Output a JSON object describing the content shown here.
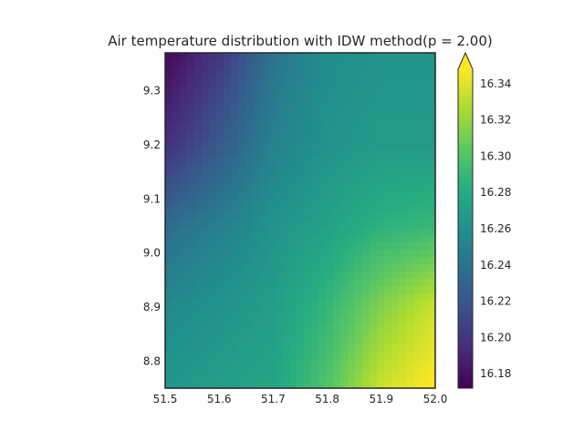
{
  "chart_data": {
    "type": "heatmap",
    "title": "Air temperature distribution with IDW method(p = 2.00)",
    "xlabel": "",
    "ylabel": "",
    "xlim": [
      51.5,
      52.0
    ],
    "ylim": [
      8.75,
      9.37
    ],
    "x_ticks": [
      "51.5",
      "51.6",
      "51.7",
      "51.8",
      "51.9",
      "52.0"
    ],
    "y_ticks": [
      "8.8",
      "8.9",
      "9.0",
      "9.1",
      "9.2",
      "9.3"
    ],
    "colormap": "viridis",
    "colorbar": {
      "vmin": 16.172,
      "vmax": 16.348,
      "ticks": [
        "16.18",
        "16.20",
        "16.22",
        "16.24",
        "16.26",
        "16.28",
        "16.30",
        "16.32",
        "16.34"
      ],
      "extend": "max"
    },
    "grid_x": [
      51.5,
      51.6,
      51.7,
      51.8,
      51.9,
      52.0
    ],
    "grid_y": [
      8.75,
      8.9,
      9.05,
      9.2,
      9.37
    ],
    "z": [
      [
        16.265,
        16.27,
        16.275,
        16.3,
        16.335,
        16.35
      ],
      [
        16.255,
        16.262,
        16.27,
        16.288,
        16.315,
        16.335
      ],
      [
        16.235,
        16.248,
        16.262,
        16.273,
        16.285,
        16.29
      ],
      [
        16.195,
        16.222,
        16.25,
        16.262,
        16.268,
        16.268
      ],
      [
        16.175,
        16.2,
        16.24,
        16.258,
        16.263,
        16.263
      ]
    ],
    "grid": false,
    "legend": "colorbar-right"
  }
}
